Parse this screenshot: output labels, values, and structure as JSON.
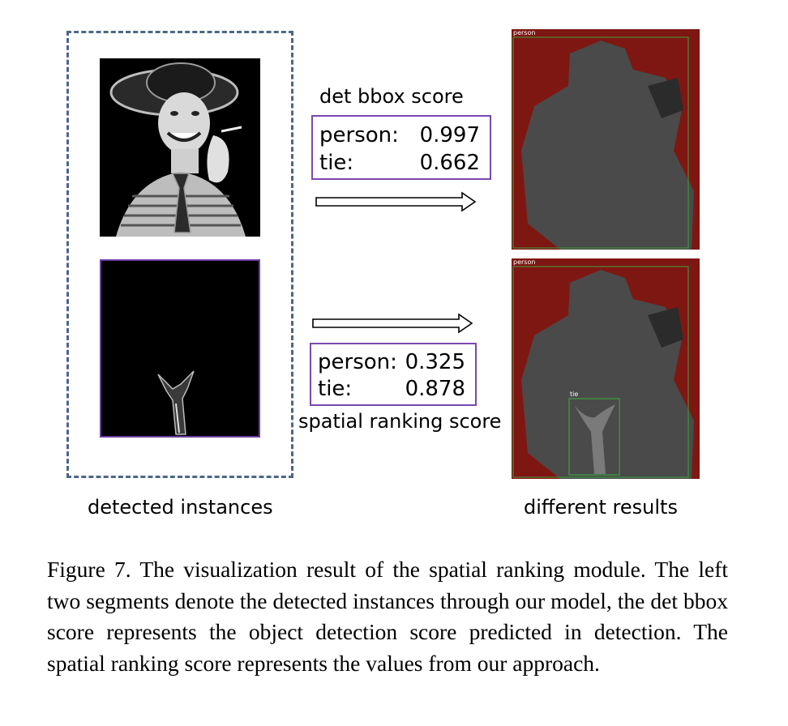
{
  "left_group": {
    "label": "detected instances"
  },
  "top_scores": {
    "title": "det bbox score",
    "rows": [
      {
        "label": "person:",
        "value": "0.997"
      },
      {
        "label": "tie:",
        "value": "0.662"
      }
    ]
  },
  "bottom_scores": {
    "title": "spatial ranking score",
    "rows": [
      {
        "label": "person:",
        "value": "0.325"
      },
      {
        "label": "tie:",
        "value": "0.878"
      }
    ]
  },
  "right_group": {
    "label": "different results",
    "top_result": {
      "box_label": "person"
    },
    "bottom_result": {
      "person_label": "person",
      "tie_label": "tie"
    }
  },
  "caption": {
    "text": "Figure 7. The visualization result of the spatial ranking module. The left two segments denote the detected instances through our model, the det bbox score represents the object detection score predicted in detection.  The spatial ranking score represents the values from our approach."
  },
  "colors": {
    "dashed_border": "#4d6688",
    "score_border": "#7a48b0",
    "mask_background": "#7e1712",
    "person_mask": "#4a4a4a",
    "tie_mask": "#7a7a7a",
    "bbox_green": "#3fa13f"
  }
}
